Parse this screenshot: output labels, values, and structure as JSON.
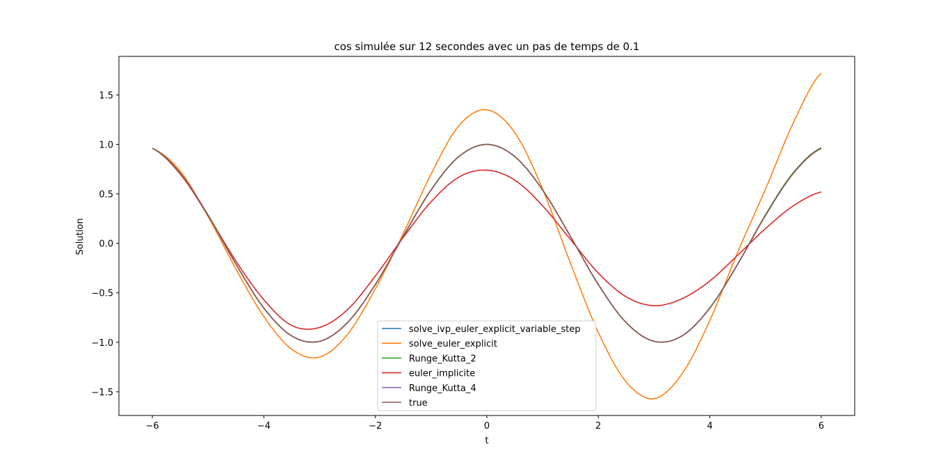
{
  "chart_data": {
    "type": "line",
    "title": "cos simulée sur 12 secondes avec un pas de temps de 0.1",
    "xlabel": "t",
    "ylabel": "Solution",
    "xlim": [
      -6.6,
      6.6
    ],
    "ylim": [
      -1.74,
      1.89
    ],
    "xticks": [
      -6,
      -4,
      -2,
      0,
      2,
      4,
      6
    ],
    "xtick_labels": [
      "−6",
      "−4",
      "−2",
      "0",
      "2",
      "4",
      "6"
    ],
    "yticks": [
      -1.5,
      -1.0,
      -0.5,
      0.0,
      0.5,
      1.0,
      1.5
    ],
    "ytick_labels": [
      "−1.5",
      "−1.0",
      "−0.5",
      "0.0",
      "0.5",
      "1.0",
      "1.5"
    ],
    "grid": false,
    "legend_position": "lower-center",
    "x": [
      -6.0,
      -5.5,
      -5.0,
      -4.5,
      -4.0,
      -3.5,
      -3.0,
      -2.5,
      -2.0,
      -1.5,
      -1.0,
      -0.5,
      0.0,
      0.5,
      1.0,
      1.5,
      2.0,
      2.5,
      3.0,
      3.5,
      4.0,
      4.5,
      5.0,
      5.5,
      6.0
    ],
    "series": [
      {
        "name": "solve_ivp_euler_explicit_variable_step",
        "color": "#1f77b4",
        "values": [
          0.96,
          0.709,
          0.284,
          -0.211,
          -0.654,
          -0.936,
          -0.99,
          -0.801,
          -0.416,
          0.071,
          0.54,
          0.878,
          1.0,
          0.878,
          0.54,
          0.071,
          -0.416,
          -0.801,
          -0.99,
          -0.936,
          -0.654,
          -0.211,
          0.284,
          0.709,
          0.96
        ]
      },
      {
        "name": "solve_euler_explicit",
        "color": "#ff7f0e",
        "values": [
          0.96,
          0.73,
          0.27,
          -0.26,
          -0.74,
          -1.07,
          -1.15,
          -0.92,
          -0.46,
          0.1,
          0.7,
          1.19,
          1.35,
          1.12,
          0.55,
          -0.2,
          -0.9,
          -1.4,
          -1.57,
          -1.32,
          -0.78,
          -0.09,
          0.55,
          1.22,
          1.72
        ]
      },
      {
        "name": "Runge_Kutta_2",
        "color": "#2ca02c",
        "values": [
          0.96,
          0.709,
          0.284,
          -0.211,
          -0.654,
          -0.936,
          -0.99,
          -0.801,
          -0.416,
          0.071,
          0.54,
          0.878,
          1.0,
          0.878,
          0.54,
          0.071,
          -0.416,
          -0.801,
          -0.99,
          -0.936,
          -0.654,
          -0.211,
          0.29,
          0.716,
          0.966
        ]
      },
      {
        "name": "euler_implicite",
        "color": "#d62728",
        "values": [
          0.96,
          0.7,
          0.28,
          -0.18,
          -0.57,
          -0.83,
          -0.85,
          -0.67,
          -0.33,
          0.06,
          0.42,
          0.67,
          0.74,
          0.64,
          0.38,
          0.04,
          -0.3,
          -0.54,
          -0.63,
          -0.56,
          -0.38,
          -0.12,
          0.15,
          0.38,
          0.52
        ]
      },
      {
        "name": "Runge_Kutta_4",
        "color": "#9467bd",
        "values": [
          0.96,
          0.709,
          0.284,
          -0.211,
          -0.654,
          -0.936,
          -0.99,
          -0.801,
          -0.416,
          0.071,
          0.54,
          0.878,
          1.0,
          0.878,
          0.54,
          0.071,
          -0.416,
          -0.801,
          -0.99,
          -0.936,
          -0.654,
          -0.211,
          0.284,
          0.709,
          0.96
        ]
      },
      {
        "name": "true",
        "color": "#8c564b",
        "values": [
          0.96,
          0.709,
          0.284,
          -0.211,
          -0.654,
          -0.936,
          -0.99,
          -0.801,
          -0.416,
          0.071,
          0.54,
          0.878,
          1.0,
          0.878,
          0.54,
          0.071,
          -0.416,
          -0.801,
          -0.99,
          -0.936,
          -0.654,
          -0.211,
          0.284,
          0.709,
          0.96
        ]
      }
    ]
  }
}
